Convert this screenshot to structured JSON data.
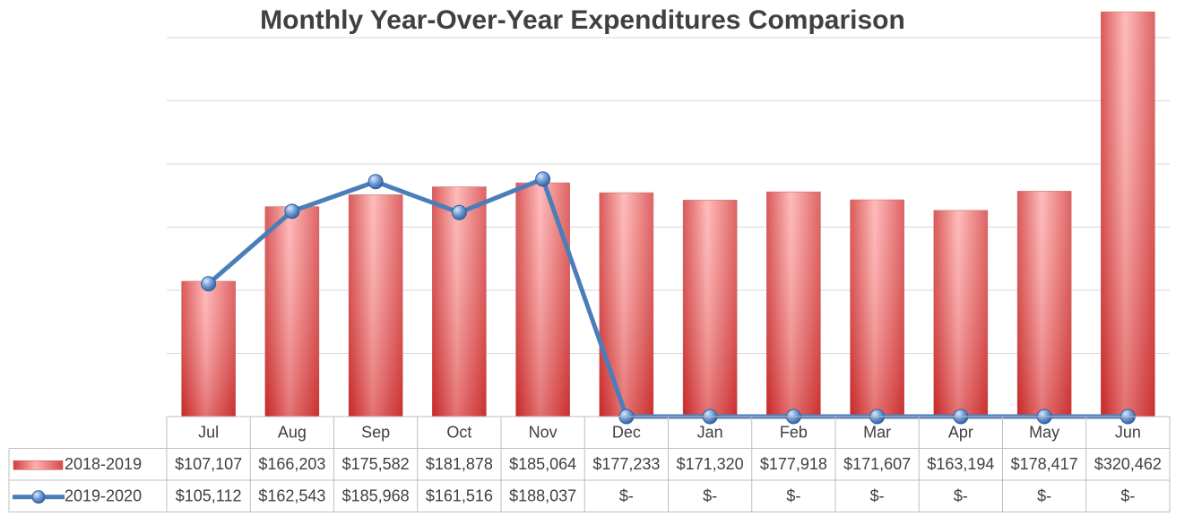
{
  "chart_data": {
    "type": "bar",
    "title": "Monthly Year-Over-Year Expenditures Comparison",
    "categories": [
      "Jul",
      "Aug",
      "Sep",
      "Oct",
      "Nov",
      "Dec",
      "Jan",
      "Feb",
      "Mar",
      "Apr",
      "May",
      "Jun"
    ],
    "series": [
      {
        "name": "2018-2019",
        "type": "bar",
        "color": "#e05a5a",
        "values": [
          107107,
          166203,
          175582,
          181878,
          185064,
          177233,
          171320,
          177918,
          171607,
          163194,
          178417,
          320462
        ],
        "value_labels": [
          "$107,107",
          "$166,203",
          "$175,582",
          "$181,878",
          "$185,064",
          "$177,233",
          "$171,320",
          "$177,918",
          "$171,607",
          "$163,194",
          "$178,417",
          "$320,462"
        ]
      },
      {
        "name": "2019-2020",
        "type": "line",
        "color": "#4a7ebb",
        "values": [
          105112,
          162543,
          185968,
          161516,
          188037,
          0,
          0,
          0,
          0,
          0,
          0,
          0
        ],
        "value_labels": [
          "$105,112",
          "$162,543",
          "$185,968",
          "$161,516",
          "$188,037",
          "$-",
          "$-",
          "$-",
          "$-",
          "$-",
          "$-",
          "$-"
        ]
      }
    ],
    "ylim": [
      0,
      350000
    ],
    "yticks": [
      0,
      50000,
      100000,
      150000,
      200000,
      250000,
      300000
    ],
    "grid": true
  }
}
